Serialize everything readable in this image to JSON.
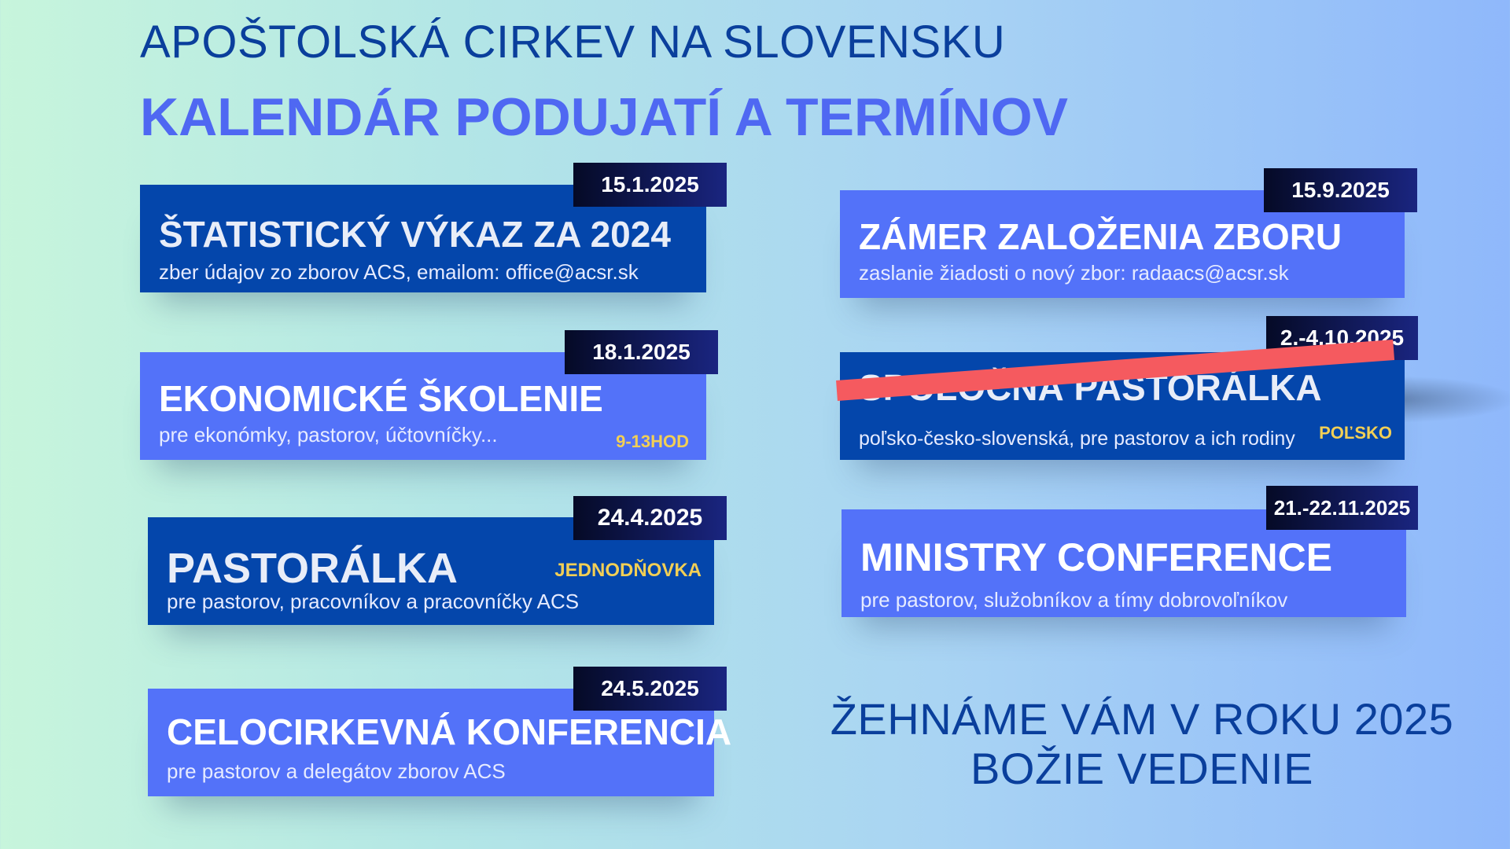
{
  "header": {
    "organization": "APOŠTOLSKÁ CIRKEV NA SLOVENSKU",
    "title": "KALENDÁR PODUJATÍ A TERMÍNOV"
  },
  "events": [
    {
      "date": "15.1.2025",
      "title": "ŠTATISTICKÝ VÝKAZ ZA 2024",
      "description": "zber údajov zo zborov ACS, emailom: office@acsr.sk"
    },
    {
      "date": "18.1.2025",
      "title": "EKONOMICKÉ ŠKOLENIE",
      "description": "pre ekonómky, pastorov, účtovníčky...",
      "tag": "9-13HOD"
    },
    {
      "date": "24.4.2025",
      "title": "PASTORÁLKA",
      "description": "pre pastorov, pracovníkov a pracovníčky ACS",
      "tag": "JEDNODŇOVKA"
    },
    {
      "date": "24.5.2025",
      "title": "CELOCIRKEVNÁ KONFERENCIA",
      "description": "pre pastorov a delegátov zborov ACS"
    },
    {
      "date": "15.9.2025",
      "title": "ZÁMER ZALOŽENIA ZBORU",
      "description": "zaslanie žiadosti o nový zbor: radaacs@acsr.sk"
    },
    {
      "date": "2.-4.10.2025",
      "title": "SPOLOČNÁ PASTORÁLKA",
      "description": "poľsko-česko-slovenská, pre pastorov a ich rodiny",
      "tag": "POĽSKO",
      "cancelled": true
    },
    {
      "date": "21.-22.11.2025",
      "title": "MINISTRY CONFERENCE",
      "description": "pre pastorov, služobníkov a tímy dobrovoľníkov"
    }
  ],
  "footer": {
    "line1": "ŽEHNÁME VÁM V ROKU 2025",
    "line2": "BOŽIE VEDENIE"
  },
  "colors": {
    "dark_card": "#0446ab",
    "light_card": "#5372f9",
    "tag": "#f2cf55",
    "strike": "#f55a5f"
  }
}
